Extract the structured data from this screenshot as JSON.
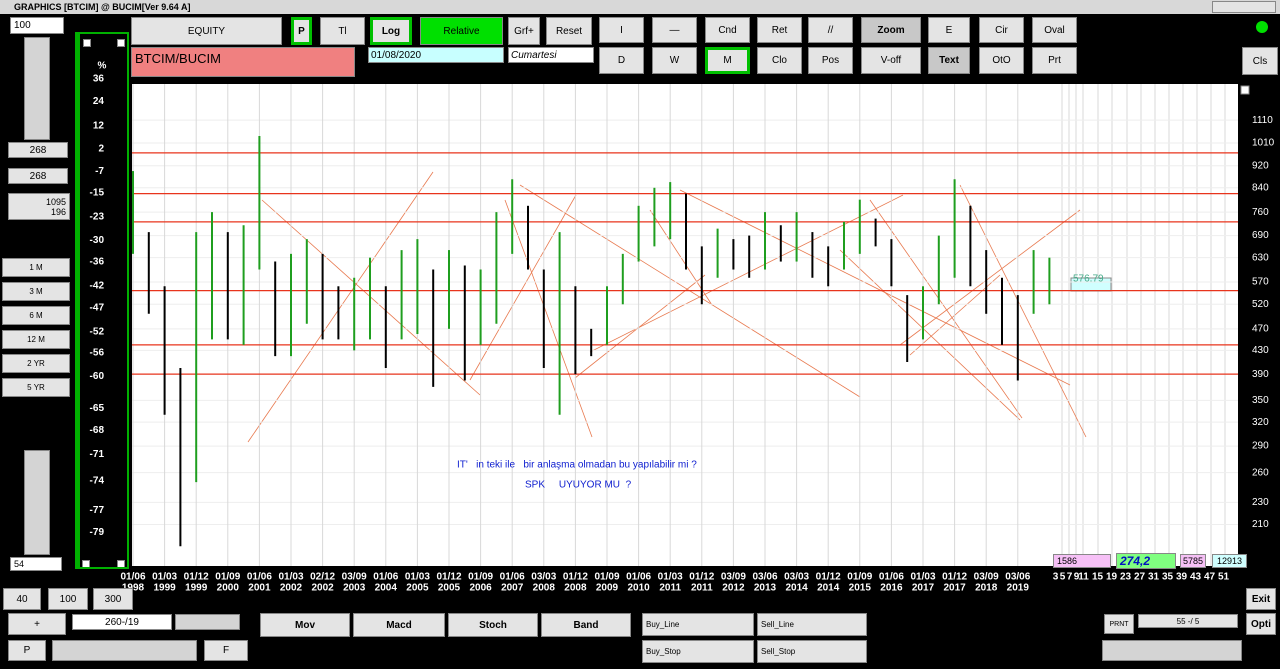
{
  "window": {
    "title": "GRAPHICS  [BTCIM] @ BUCIM[Ver 9.64 A]"
  },
  "toolbar": {
    "zoom_input": 100,
    "equity": "EQUITY",
    "p": "P",
    "tl": "Tl",
    "log": "Log",
    "relative": "Relative",
    "grf": "Grf+",
    "reset": "Reset",
    "i": "I",
    "dash": "—",
    "cnd": "Cnd",
    "ret": "Ret",
    "slashes": "//",
    "zoom": "Zoom",
    "e": "E",
    "cir": "Cir",
    "oval": "Oval",
    "symbol": "BTCIM/BUCIM",
    "date": "01/08/2020",
    "day": "Cumartesi",
    "d": "D",
    "w": "W",
    "m": "M",
    "clo": "Clo",
    "pos": "Pos",
    "voff": "V-off",
    "text": "Text",
    "oto": "OtO",
    "prt": "Prt",
    "cls": "Cls"
  },
  "left_panel": {
    "value_a": 268,
    "value_b": 268,
    "value_c": 1095,
    "value_d": 196,
    "periods": [
      "1 M",
      "3 M",
      "6 M",
      "12 M",
      "2 YR",
      "5 YR"
    ],
    "bottom_input": 54,
    "percent_sign": "%"
  },
  "chart_data": {
    "type": "ohlc-bar",
    "y_scale": "log",
    "ylim": [
      177,
      1288
    ],
    "yticks": [
      1110,
      1010,
      920,
      840,
      760,
      690,
      630,
      570,
      520,
      470,
      430,
      390,
      350,
      320,
      290,
      260,
      230,
      210
    ],
    "y2lim": [
      33.2,
      -81.7
    ],
    "y2ticks": [
      36,
      24,
      12,
      2,
      -7,
      -15,
      -23,
      -30,
      -36,
      -42,
      -47,
      -52,
      -56,
      -60,
      -65,
      -68,
      -71,
      -74,
      -77,
      -79
    ],
    "categories": [
      "01/06",
      null,
      "01/03",
      null,
      "01/12",
      null,
      "01/09",
      null,
      "01/06",
      null,
      "01/03",
      null,
      "02/12",
      null,
      "03/09",
      null,
      "01/06",
      null,
      "01/03",
      null,
      "01/12",
      null,
      "01/09",
      null,
      "01/06",
      null,
      "03/03",
      null,
      "01/12",
      null,
      "01/09",
      null,
      "01/06",
      null,
      "01/03",
      null,
      "01/12",
      null,
      "03/09",
      null,
      "03/06",
      null,
      "03/03",
      null,
      "01/12",
      null,
      "01/09",
      null,
      "01/06",
      null,
      "01/03",
      null,
      "01/12",
      null,
      "03/09",
      null,
      "03/06",
      null,
      null
    ],
    "category_years": [
      "1998",
      null,
      "1999",
      null,
      "1999",
      null,
      "2000",
      null,
      "2001",
      null,
      "2002",
      null,
      "2002",
      null,
      "2003",
      null,
      "2004",
      null,
      "2005",
      null,
      "2005",
      null,
      "2006",
      null,
      "2007",
      null,
      "2008",
      null,
      "2008",
      null,
      "2009",
      null,
      "2010",
      null,
      "2011",
      null,
      "2011",
      null,
      "2012",
      null,
      "2013",
      null,
      "2014",
      null,
      "2014",
      null,
      "2015",
      null,
      "2016",
      null,
      "2017",
      null,
      "2017",
      null,
      "2018",
      null,
      "2019",
      null,
      null
    ],
    "high": [
      900,
      700,
      560,
      400,
      700,
      760,
      700,
      720,
      1040,
      620,
      640,
      680,
      640,
      560,
      580,
      630,
      560,
      650,
      680,
      600,
      650,
      610,
      600,
      760,
      870,
      780,
      600,
      700,
      560,
      470,
      560,
      640,
      780,
      840,
      860,
      820,
      660,
      710,
      680,
      690,
      760,
      720,
      760,
      700,
      660,
      730,
      800,
      740,
      680,
      540,
      560,
      690,
      870,
      780,
      650,
      580,
      540,
      650,
      630
    ],
    "low": [
      640,
      500,
      330,
      192,
      250,
      450,
      450,
      440,
      600,
      420,
      420,
      480,
      450,
      450,
      430,
      450,
      400,
      450,
      460,
      370,
      470,
      380,
      440,
      480,
      640,
      600,
      400,
      330,
      390,
      420,
      440,
      520,
      620,
      660,
      680,
      600,
      520,
      580,
      600,
      580,
      600,
      620,
      620,
      580,
      560,
      600,
      640,
      660,
      560,
      410,
      450,
      520,
      580,
      560,
      500,
      440,
      380,
      500,
      520
    ],
    "color": "#1f9e1f",
    "down_color": "#000000",
    "hlines": [
      970,
      820,
      730,
      550,
      440,
      390
    ],
    "hline_color": "#e8341c",
    "last_price": 576.79,
    "week_ticks": [
      3,
      5,
      7,
      9,
      11,
      15,
      19,
      23,
      27,
      31,
      35,
      39,
      43,
      47,
      51
    ],
    "annotations": [
      "IT'   in teki ile   bir anlaşma olmadan bu yapılabilir mi ?",
      "SPK     UYUYOR MU  ?"
    ],
    "stats": {
      "a": 1586,
      "b": "274,2",
      "c": 5785,
      "d": 12913
    }
  },
  "bottom": {
    "z40": 40,
    "z100": 100,
    "z300": 300,
    "plus": "+",
    "range": "260-/19",
    "p": "P",
    "f": "F",
    "mov": "Mov",
    "macd": "Macd",
    "stoch": "Stoch",
    "band": "Band",
    "buy_line": "Buy_Line",
    "sell_line": "Sell_Line",
    "buy_stop": "Buy_Stop",
    "sell_stop": "Sell_Stop",
    "prnt": "PRNT",
    "count": "55 -/ 5",
    "exit": "Exit",
    "opti": "Opti"
  }
}
